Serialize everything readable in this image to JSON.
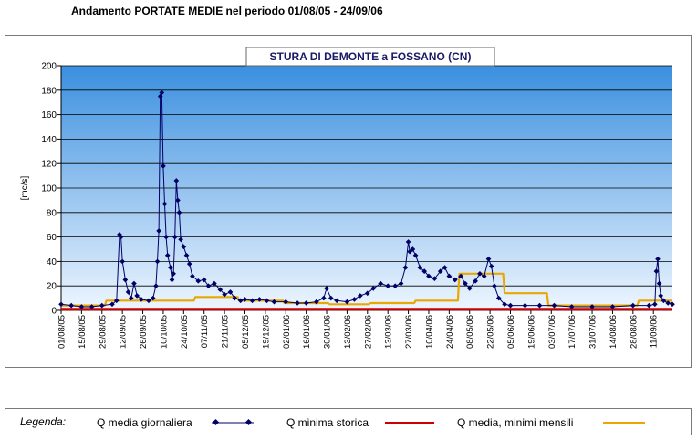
{
  "page_title": "Andamento PORTATE MEDIE nel periodo 01/08/05 - 24/09/06",
  "colors": {
    "daily": "#000066",
    "min_storica": "#cc0000",
    "min_mensili": "#e8a800",
    "plot_top": "#3a8fdf",
    "plot_bottom": "#eef6ff",
    "grid": "#000000"
  },
  "legend": {
    "label": "Legenda:",
    "items": [
      {
        "name": "Q media giornaliera",
        "color": "#000066",
        "marker": true
      },
      {
        "name": "Q minima storica",
        "color": "#cc0000",
        "marker": false
      },
      {
        "name": "Q media, minimi mensili",
        "color": "#e8a800",
        "marker": false
      }
    ]
  },
  "chart_data": {
    "type": "line",
    "title": "STURA DI DEMONTE a FOSSANO (CN)",
    "ylabel": "[mc/s]",
    "ylim": [
      0,
      200
    ],
    "yticks": [
      0,
      20,
      40,
      60,
      80,
      100,
      120,
      140,
      160,
      180,
      200
    ],
    "xlim": [
      "01/08/05",
      "24/09/06"
    ],
    "xticks": [
      "01/08/05",
      "15/08/05",
      "29/08/05",
      "12/09/05",
      "26/09/05",
      "10/10/05",
      "24/10/05",
      "07/11/05",
      "21/11/05",
      "05/12/05",
      "19/12/05",
      "02/01/06",
      "16/01/06",
      "30/01/06",
      "13/02/06",
      "27/02/06",
      "13/03/06",
      "27/03/06",
      "10/04/06",
      "24/04/06",
      "08/05/06",
      "22/05/06",
      "05/06/06",
      "19/06/06",
      "03/07/06",
      "17/07/06",
      "31/07/06",
      "14/08/06",
      "28/08/06",
      "11/09/06"
    ],
    "grid": true,
    "series": [
      {
        "name": "Q media giornaliera",
        "points": [
          [
            "01/08/05",
            5
          ],
          [
            "08/08/05",
            4
          ],
          [
            "15/08/05",
            3
          ],
          [
            "22/08/05",
            3
          ],
          [
            "29/08/05",
            4
          ],
          [
            "05/09/05",
            5
          ],
          [
            "08/09/05",
            8
          ],
          [
            "10/09/05",
            62
          ],
          [
            "11/09/05",
            60
          ],
          [
            "12/09/05",
            40
          ],
          [
            "14/09/05",
            25
          ],
          [
            "16/09/05",
            15
          ],
          [
            "18/09/05",
            10
          ],
          [
            "20/09/05",
            22
          ],
          [
            "22/09/05",
            12
          ],
          [
            "25/09/05",
            9
          ],
          [
            "30/09/05",
            8
          ],
          [
            "03/10/05",
            10
          ],
          [
            "05/10/05",
            20
          ],
          [
            "06/10/05",
            40
          ],
          [
            "07/10/05",
            65
          ],
          [
            "08/10/05",
            175
          ],
          [
            "09/10/05",
            178
          ],
          [
            "10/10/05",
            118
          ],
          [
            "11/10/05",
            87
          ],
          [
            "12/10/05",
            60
          ],
          [
            "13/10/05",
            45
          ],
          [
            "15/10/05",
            35
          ],
          [
            "16/10/05",
            25
          ],
          [
            "17/10/05",
            30
          ],
          [
            "18/10/05",
            60
          ],
          [
            "19/10/05",
            106
          ],
          [
            "20/10/05",
            90
          ],
          [
            "21/10/05",
            80
          ],
          [
            "22/10/05",
            58
          ],
          [
            "24/10/05",
            52
          ],
          [
            "26/10/05",
            45
          ],
          [
            "28/10/05",
            38
          ],
          [
            "30/10/05",
            28
          ],
          [
            "03/11/05",
            24
          ],
          [
            "07/11/05",
            25
          ],
          [
            "10/11/05",
            20
          ],
          [
            "14/11/05",
            22
          ],
          [
            "18/11/05",
            17
          ],
          [
            "21/11/05",
            13
          ],
          [
            "25/11/05",
            15
          ],
          [
            "28/11/05",
            10
          ],
          [
            "02/12/05",
            8
          ],
          [
            "05/12/05",
            9
          ],
          [
            "10/12/05",
            8
          ],
          [
            "15/12/05",
            9
          ],
          [
            "20/12/05",
            8
          ],
          [
            "25/12/05",
            7
          ],
          [
            "02/01/06",
            7
          ],
          [
            "10/01/06",
            6
          ],
          [
            "16/01/06",
            6
          ],
          [
            "23/01/06",
            7
          ],
          [
            "28/01/06",
            10
          ],
          [
            "30/01/06",
            18
          ],
          [
            "02/02/06",
            10
          ],
          [
            "06/02/06",
            8
          ],
          [
            "13/02/06",
            7
          ],
          [
            "18/02/06",
            9
          ],
          [
            "22/02/06",
            12
          ],
          [
            "27/02/06",
            14
          ],
          [
            "03/03/06",
            18
          ],
          [
            "08/03/06",
            22
          ],
          [
            "13/03/06",
            20
          ],
          [
            "18/03/06",
            20
          ],
          [
            "22/03/06",
            22
          ],
          [
            "25/03/06",
            35
          ],
          [
            "27/03/06",
            56
          ],
          [
            "28/03/06",
            48
          ],
          [
            "30/03/06",
            50
          ],
          [
            "01/04/06",
            45
          ],
          [
            "04/04/06",
            35
          ],
          [
            "07/04/06",
            32
          ],
          [
            "10/04/06",
            28
          ],
          [
            "14/04/06",
            26
          ],
          [
            "18/04/06",
            32
          ],
          [
            "21/04/06",
            35
          ],
          [
            "24/04/06",
            28
          ],
          [
            "28/04/06",
            25
          ],
          [
            "02/05/06",
            28
          ],
          [
            "05/05/06",
            22
          ],
          [
            "08/05/06",
            18
          ],
          [
            "12/05/06",
            24
          ],
          [
            "15/05/06",
            30
          ],
          [
            "18/05/06",
            28
          ],
          [
            "21/05/06",
            42
          ],
          [
            "23/05/06",
            36
          ],
          [
            "25/05/06",
            20
          ],
          [
            "28/05/06",
            10
          ],
          [
            "01/06/06",
            5
          ],
          [
            "05/06/06",
            4
          ],
          [
            "15/06/06",
            4
          ],
          [
            "25/06/06",
            4
          ],
          [
            "05/07/06",
            4
          ],
          [
            "17/07/06",
            3
          ],
          [
            "31/07/06",
            3
          ],
          [
            "14/08/06",
            3
          ],
          [
            "28/08/06",
            4
          ],
          [
            "08/09/06",
            4
          ],
          [
            "12/09/06",
            5
          ],
          [
            "13/09/06",
            32
          ],
          [
            "14/09/06",
            42
          ],
          [
            "15/09/06",
            22
          ],
          [
            "16/09/06",
            12
          ],
          [
            "18/09/06",
            8
          ],
          [
            "21/09/06",
            6
          ],
          [
            "24/09/06",
            5
          ]
        ]
      },
      {
        "name": "Q minima storica",
        "points": [
          [
            "01/08/05",
            1
          ],
          [
            "24/09/06",
            1
          ]
        ]
      },
      {
        "name": "Q media, minimi mensili",
        "points": [
          [
            "01/08/05",
            4
          ],
          [
            "31/08/05",
            4
          ],
          [
            "01/09/05",
            8
          ],
          [
            "30/09/05",
            8
          ],
          [
            "01/10/05",
            8
          ],
          [
            "31/10/05",
            8
          ],
          [
            "01/11/05",
            11
          ],
          [
            "30/11/05",
            11
          ],
          [
            "01/12/05",
            8
          ],
          [
            "31/12/05",
            8
          ],
          [
            "01/01/06",
            6
          ],
          [
            "31/01/06",
            6
          ],
          [
            "01/02/06",
            5
          ],
          [
            "28/02/06",
            5
          ],
          [
            "01/03/06",
            6
          ],
          [
            "31/03/06",
            6
          ],
          [
            "01/04/06",
            8
          ],
          [
            "30/04/06",
            8
          ],
          [
            "01/05/06",
            30
          ],
          [
            "31/05/06",
            30
          ],
          [
            "01/06/06",
            14
          ],
          [
            "30/06/06",
            14
          ],
          [
            "01/07/06",
            4
          ],
          [
            "31/07/06",
            4
          ],
          [
            "01/08/06",
            4
          ],
          [
            "31/08/06",
            4
          ],
          [
            "01/09/06",
            8
          ],
          [
            "24/09/06",
            8
          ]
        ]
      }
    ]
  }
}
